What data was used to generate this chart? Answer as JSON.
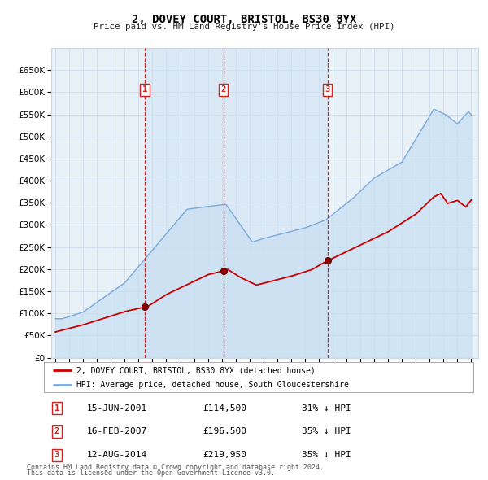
{
  "title": "2, DOVEY COURT, BRISTOL, BS30 8YX",
  "subtitle": "Price paid vs. HM Land Registry's House Price Index (HPI)",
  "legend_label_red": "2, DOVEY COURT, BRISTOL, BS30 8YX (detached house)",
  "legend_label_blue": "HPI: Average price, detached house, South Gloucestershire",
  "footer_line1": "Contains HM Land Registry data © Crown copyright and database right 2024.",
  "footer_line2": "This data is licensed under the Open Government Licence v3.0.",
  "transactions": [
    {
      "num": 1,
      "date": "15-JUN-2001",
      "price": 114500,
      "pct": "31%",
      "dir": "↓",
      "year_x": 2001.45
    },
    {
      "num": 2,
      "date": "16-FEB-2007",
      "price": 196500,
      "pct": "35%",
      "dir": "↓",
      "year_x": 2007.12
    },
    {
      "num": 3,
      "date": "12-AUG-2014",
      "price": 219950,
      "pct": "35%",
      "dir": "↓",
      "year_x": 2014.62
    }
  ],
  "color_red": "#cc0000",
  "color_blue": "#7aabdc",
  "color_blue_fill": "#c8dff2",
  "color_grid": "#c8d8e8",
  "color_dashed": "#cc2222",
  "background_chart": "#e8f0f8",
  "background_fig": "#ffffff",
  "ylim": [
    0,
    700000
  ],
  "yticks": [
    0,
    50000,
    100000,
    150000,
    200000,
    250000,
    300000,
    350000,
    400000,
    450000,
    500000,
    550000,
    600000,
    650000
  ],
  "xlim_start": 1994.7,
  "xlim_end": 2025.5
}
